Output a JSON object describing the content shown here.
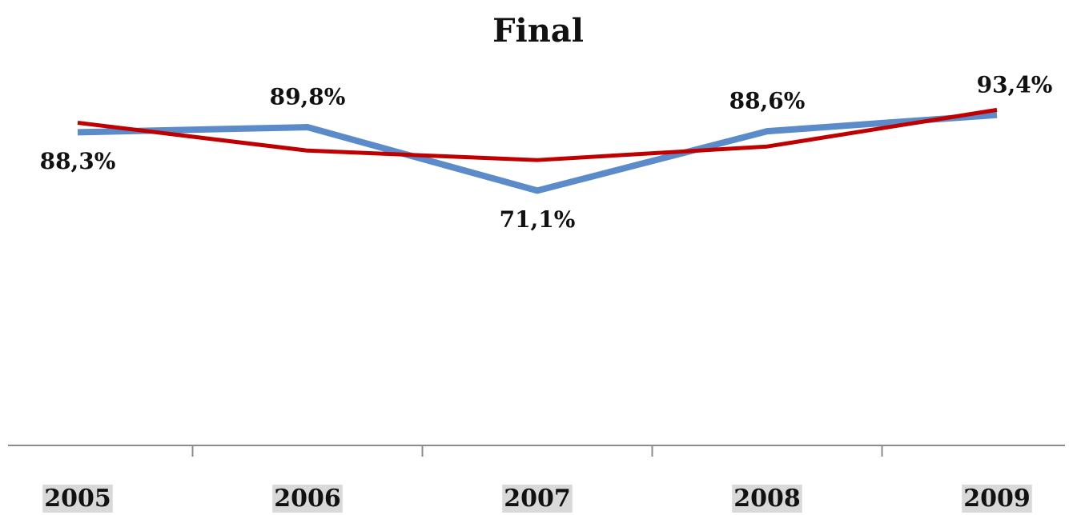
{
  "chart_data": {
    "type": "line",
    "title": "Final",
    "categories": [
      "2005",
      "2006",
      "2007",
      "2008",
      "2009"
    ],
    "series": [
      {
        "color": "#5b8bc9",
        "values": [
          88.3,
          89.8,
          71.1,
          88.6,
          93.4
        ],
        "value_labels": [
          "88,3%",
          "89,8%",
          "71,1%",
          "88,6%",
          "93,4%"
        ]
      },
      {
        "color": "#c00000",
        "values": [
          91.1,
          82.9,
          80.1,
          84.1,
          94.9
        ]
      }
    ],
    "ylim": [
      -4,
      99
    ]
  }
}
